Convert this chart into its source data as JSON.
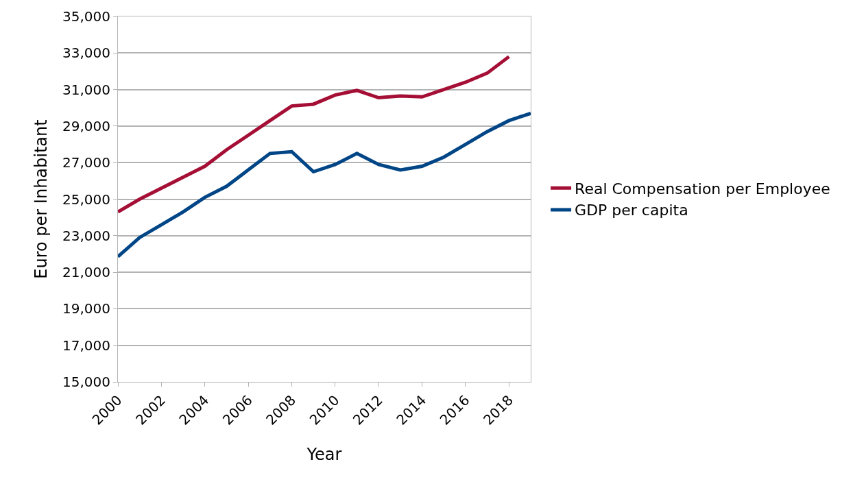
{
  "chart_data": {
    "type": "line",
    "xlabel": "Year",
    "ylabel": "Euro per Inhabitant",
    "x": [
      2000,
      2001,
      2002,
      2003,
      2004,
      2005,
      2006,
      2007,
      2008,
      2009,
      2010,
      2011,
      2012,
      2013,
      2014,
      2015,
      2016,
      2017,
      2018,
      2019
    ],
    "series": [
      {
        "name": "Real Compensation per Employee",
        "color": "#a50f35",
        "values": [
          24300,
          25000,
          25600,
          26200,
          26800,
          27700,
          28500,
          29300,
          30100,
          30200,
          30700,
          30950,
          30550,
          30650,
          30600,
          31000,
          31400,
          31900,
          32800,
          null
        ]
      },
      {
        "name": "GDP per capita",
        "color": "#004586",
        "values": [
          21850,
          22900,
          23600,
          24300,
          25100,
          25700,
          26600,
          27500,
          27600,
          26500,
          26900,
          27500,
          26900,
          26600,
          26800,
          27300,
          28000,
          28700,
          29300,
          29700
        ]
      }
    ],
    "xlim": [
      2000,
      2019
    ],
    "xticks": [
      2000,
      2002,
      2004,
      2006,
      2008,
      2010,
      2012,
      2014,
      2016,
      2018
    ],
    "ylim": [
      15000,
      35000
    ],
    "yticks": [
      {
        "value": 15000,
        "label": "15,000"
      },
      {
        "value": 17000,
        "label": "17,000"
      },
      {
        "value": 19000,
        "label": "19,000"
      },
      {
        "value": 21000,
        "label": "21,000"
      },
      {
        "value": 23000,
        "label": "23,000"
      },
      {
        "value": 25000,
        "label": "25,000"
      },
      {
        "value": 27000,
        "label": "27,000"
      },
      {
        "value": 29000,
        "label": "29,000"
      },
      {
        "value": 31000,
        "label": "31,000"
      },
      {
        "value": 33000,
        "label": "33,000"
      },
      {
        "value": 35000,
        "label": "35,000"
      }
    ],
    "grid": "y",
    "legend": "right",
    "marker": "none",
    "line_style": "solid"
  }
}
